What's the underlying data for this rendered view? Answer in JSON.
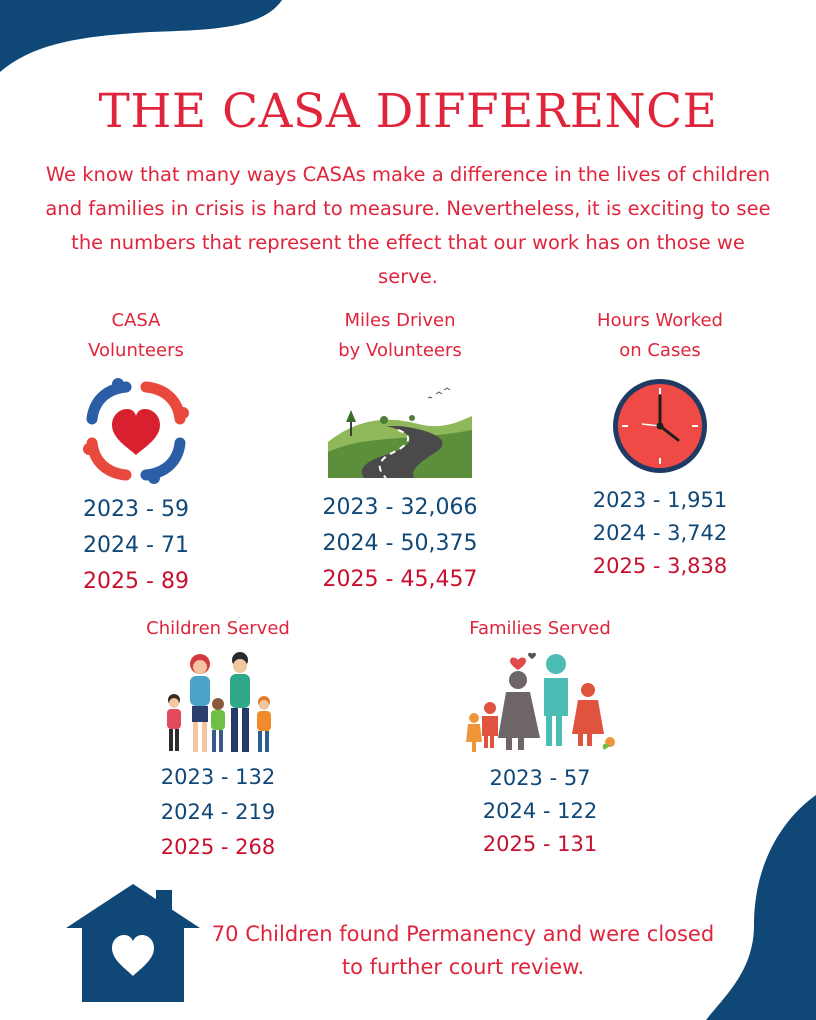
{
  "title": "THE CASA DIFFERENCE",
  "intro": "We know that many ways CASAs make a difference in the lives of children and families in crisis is hard to measure. Nevertheless, it is exciting to see the numbers that represent the effect that our work has on those we serve.",
  "stats": [
    {
      "label": "CASA\n  Volunteers",
      "icon": "hands-heart-icon",
      "years": [
        "2023 - 59",
        "2024 - 71",
        "2025 - 89"
      ]
    },
    {
      "label": "Miles  Driven\n by Volunteers",
      "icon": "winding-road-icon",
      "years": [
        "2023 - 32,066",
        "2024 - 50,375",
        "2025 - 45,457"
      ]
    },
    {
      "label": "Hours Worked\non Cases",
      "icon": "clock-icon",
      "years": [
        "2023 - 1,951",
        "2024 - 3,742",
        "2025 - 3,838"
      ]
    },
    {
      "label": "Children Served",
      "icon": "children-group-icon",
      "years": [
        "2023 - 132",
        "2024 - 219",
        "2025 - 268"
      ]
    },
    {
      "label": "Families Served",
      "icon": "family-icon",
      "years": [
        "2023 - 57",
        "2024 - 122",
        "2025 - 131"
      ]
    }
  ],
  "closing": "70 Children found Permanency and were closed to further court review.",
  "colors": {
    "red": "#e0243b",
    "navy": "#0f4777",
    "dark_red": "#c8102e"
  }
}
